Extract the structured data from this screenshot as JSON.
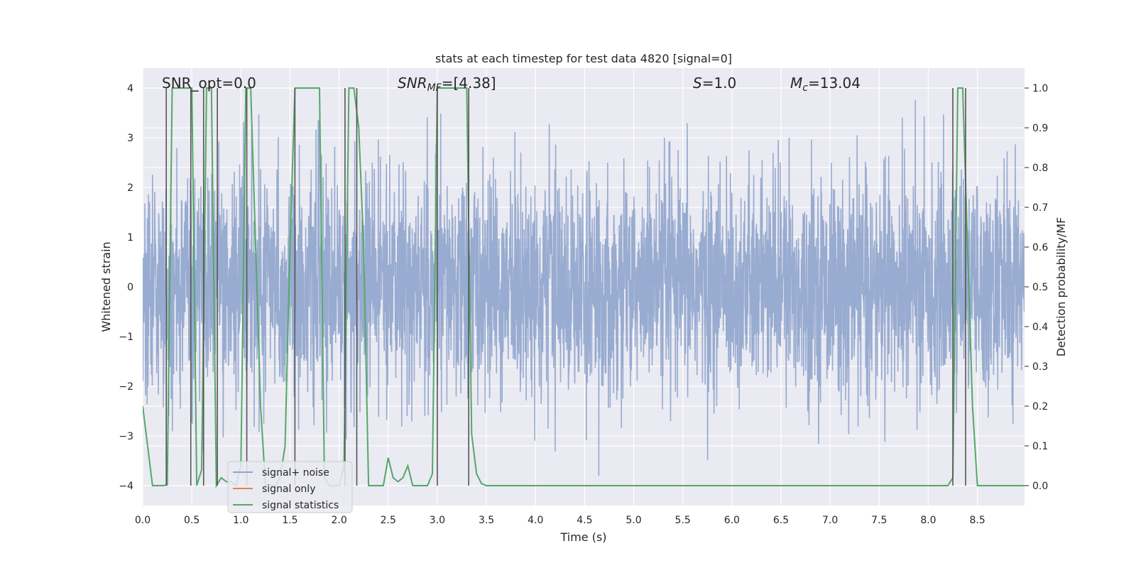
{
  "chart_data": {
    "type": "line",
    "title": "stats at each timestep for test data 4820 [signal=0]",
    "xlabel": "Time (s)",
    "ylabel": "Whitened strain",
    "y2label": "Detection probability/MF",
    "xlim": [
      0.0,
      8.98
    ],
    "ylim": [
      -4.4,
      4.4
    ],
    "y2lim": [
      -0.05,
      1.05
    ],
    "xticks": [
      0.0,
      0.5,
      1.0,
      1.5,
      2.0,
      2.5,
      3.0,
      3.5,
      4.0,
      4.5,
      5.0,
      5.5,
      6.0,
      6.5,
      7.0,
      7.5,
      8.0,
      8.5
    ],
    "xtick_labels": [
      "0.0",
      "0.5",
      "1.0",
      "1.5",
      "2.0",
      "2.5",
      "3.0",
      "3.5",
      "4.0",
      "4.5",
      "5.0",
      "5.5",
      "6.0",
      "6.5",
      "7.0",
      "7.5",
      "8.0",
      "8.5"
    ],
    "yticks": [
      4,
      3,
      2,
      1,
      0,
      -1,
      -2,
      -3,
      -4
    ],
    "ytick_labels": [
      "4",
      "3",
      "2",
      "1",
      "0",
      "−1",
      "−2",
      "−3",
      "−4"
    ],
    "y2ticks": [
      1.0,
      0.9,
      0.8,
      0.7,
      0.6,
      0.5,
      0.4,
      0.3,
      0.2,
      0.1,
      0.0
    ],
    "y2tick_labels": [
      "1.0",
      "0.9",
      "0.8",
      "0.7",
      "0.6",
      "0.5",
      "0.4",
      "0.3",
      "0.2",
      "0.1",
      "0.0"
    ],
    "grid": true,
    "legend_position": "lower-left",
    "annotations": {
      "snr_opt": "SNR_opt=0.0",
      "snr_mf_base": "SNR",
      "snr_mf_sub": "MF",
      "snr_mf_value": "=[4.38]",
      "s_base": "S",
      "s_value": "=1.0",
      "mc_base": "M",
      "mc_sub": "c",
      "mc_value": "=13.04"
    },
    "series": [
      {
        "name": "signal+ noise",
        "color": "#8fa4cc",
        "style": "noise",
        "axis": "left",
        "envelope": 1.6,
        "peak": 3.5,
        "dt": 0.0025
      },
      {
        "name": "signal only",
        "color": "#dd8452",
        "axis": "left",
        "x": [],
        "y": []
      },
      {
        "name": "signal statistics",
        "color": "#55a868",
        "axis": "right",
        "x": [
          0.0,
          0.05,
          0.1,
          0.15,
          0.2,
          0.25,
          0.3,
          0.35,
          0.4,
          0.45,
          0.5,
          0.55,
          0.6,
          0.65,
          0.7,
          0.75,
          0.8,
          0.85,
          0.9,
          0.95,
          1.0,
          1.05,
          1.1,
          1.15,
          1.2,
          1.25,
          1.3,
          1.35,
          1.4,
          1.45,
          1.5,
          1.55,
          1.6,
          1.65,
          1.7,
          1.75,
          1.8,
          1.85,
          1.9,
          1.95,
          2.0,
          2.05,
          2.1,
          2.15,
          2.2,
          2.25,
          2.3,
          2.35,
          2.4,
          2.45,
          2.5,
          2.55,
          2.6,
          2.65,
          2.7,
          2.75,
          2.8,
          2.85,
          2.9,
          2.95,
          3.0,
          3.05,
          3.1,
          3.15,
          3.2,
          3.25,
          3.3,
          3.35,
          3.4,
          3.45,
          3.5,
          3.55,
          8.2,
          8.25,
          8.3,
          8.35,
          8.4,
          8.45,
          8.5,
          8.55,
          8.98
        ],
        "y": [
          0.2,
          0.1,
          0.0,
          0.0,
          0.0,
          0.002,
          1.0,
          1.0,
          1.0,
          1.0,
          1.0,
          0.0,
          0.04,
          1.0,
          1.0,
          0.0,
          0.02,
          0.01,
          0.01,
          0.0,
          0.05,
          1.0,
          1.0,
          0.6,
          0.2,
          0.0,
          0.0,
          0.0,
          0.02,
          0.1,
          0.6,
          1.0,
          1.0,
          1.0,
          1.0,
          1.0,
          1.0,
          0.02,
          0.0,
          0.0,
          0.0,
          0.05,
          1.0,
          1.0,
          0.9,
          0.6,
          0.0,
          0.0,
          0.0,
          0.0,
          0.07,
          0.02,
          0.01,
          0.02,
          0.05,
          0.0,
          0.0,
          0.0,
          0.0,
          0.03,
          1.0,
          1.0,
          1.0,
          1.0,
          1.0,
          1.0,
          1.0,
          0.13,
          0.03,
          0.005,
          0.0,
          0.0,
          0.0,
          0.02,
          1.0,
          1.0,
          0.6,
          0.2,
          0.0,
          0.0,
          0.0
        ]
      }
    ],
    "detections": [
      {
        "x": 0.24,
        "y1": 1.0,
        "y2": 0.0
      },
      {
        "x": 0.49,
        "y1": 1.0,
        "y2": 0.0
      },
      {
        "x": 0.62,
        "y1": 1.0,
        "y2": 0.0
      },
      {
        "x": 0.76,
        "y1": 1.0,
        "y2": 0.0
      },
      {
        "x": 1.06,
        "y1": 1.0,
        "y2": 0.0
      },
      {
        "x": 1.55,
        "y1": 1.0,
        "y2": 0.0
      },
      {
        "x": 2.06,
        "y1": 1.0,
        "y2": 0.0
      },
      {
        "x": 2.18,
        "y1": 1.0,
        "y2": 0.0
      },
      {
        "x": 3.0,
        "y1": 1.0,
        "y2": 0.0
      },
      {
        "x": 3.32,
        "y1": 1.0,
        "y2": 0.0
      },
      {
        "x": 8.25,
        "y1": 1.0,
        "y2": 0.0
      },
      {
        "x": 8.38,
        "y1": 1.0,
        "y2": 0.0
      }
    ],
    "colors": {
      "plot_bg": "#eaeaf2",
      "grid": "#ffffff",
      "detection_line": "#555555"
    }
  }
}
